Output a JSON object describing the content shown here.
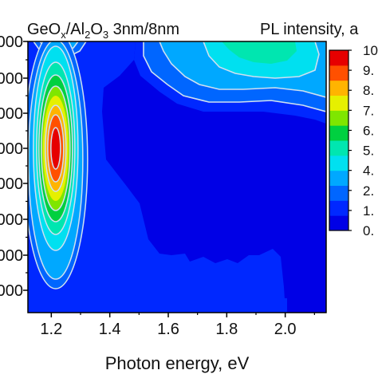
{
  "chart_data": {
    "type": "heatmap",
    "title_parts": [
      "GeO",
      "x",
      "/Al",
      "2",
      "O",
      "3",
      " 3nm/8nm"
    ],
    "colorbar_title": "PL intensity, a",
    "xlabel": "Photon energy, eV",
    "xlim": [
      1.12,
      2.14
    ],
    "x_ticks": [
      "1.2",
      "1.4",
      "1.6",
      "1.8",
      "2.0"
    ],
    "y_tick_labels": [
      "000",
      "000",
      "000",
      "000",
      "000",
      "000",
      "000",
      "000"
    ],
    "colorbar_ticks": [
      "10",
      "9.",
      "8.",
      "7.",
      "6.",
      "5.",
      "4.",
      "2.",
      "1.",
      "0."
    ],
    "levels": 12,
    "colormap": [
      "#0000e6",
      "#0028ff",
      "#0066ff",
      "#00a8ff",
      "#00e0f0",
      "#00e6b0",
      "#00d040",
      "#7fe600",
      "#e6f000",
      "#ffb400",
      "#ff5000",
      "#e60000"
    ],
    "contour_line_color": "#cfe0f0",
    "peaks": [
      {
        "x": 1.22,
        "level": 12
      },
      {
        "x": 1.23,
        "level": 4
      },
      {
        "x": 1.83,
        "level": 3
      }
    ]
  }
}
